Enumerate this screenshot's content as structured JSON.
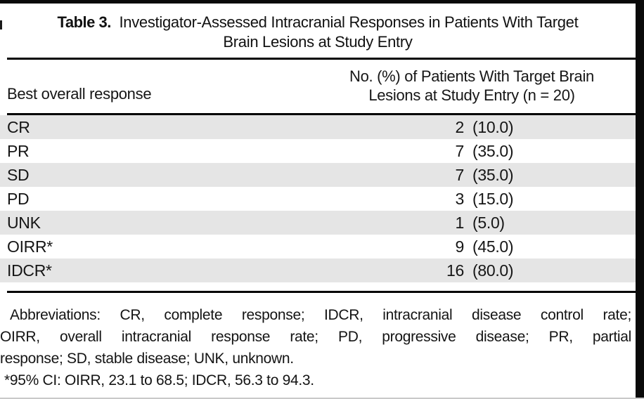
{
  "table": {
    "caption": {
      "label": "Table 3.",
      "title_line1": "Investigator-Assessed Intracranial Responses in Patients With Target",
      "title_line2": "Brain Lesions at Study Entry"
    },
    "header": {
      "col1": "Best overall response",
      "col2_line1": "No. (%) of Patients With Target Brain",
      "col2_line2": "Lesions at Study Entry (n = 20)"
    },
    "rows": [
      {
        "label": "CR",
        "count": "2",
        "pct": "(10.0)"
      },
      {
        "label": "PR",
        "count": "7",
        "pct": "(35.0)"
      },
      {
        "label": "SD",
        "count": "7",
        "pct": "(35.0)"
      },
      {
        "label": "PD",
        "count": "3",
        "pct": "(15.0)"
      },
      {
        "label": "UNK",
        "count": "1",
        "pct": "(5.0)"
      },
      {
        "label": "OIRR*",
        "count": "9",
        "pct": "(45.0)"
      },
      {
        "label": "IDCR*",
        "count": "16",
        "pct": "(80.0)"
      }
    ]
  },
  "footnotes": {
    "abbreviations_line1": "Abbreviations: CR, complete response; IDCR, intracranial disease control rate;",
    "abbreviations_line2": "OIRR, overall intracranial response rate; PD, progressive disease; PR, partial",
    "abbreviations_line3": "response; SD, stable disease; UNK, unknown.",
    "ci_note": "*95% CI: OIRR, 23.1 to 68.5; IDCR, 56.3 to 94.3."
  },
  "colors": {
    "row_shade": "#e5e5e5",
    "rule": "#000000",
    "frame_bar": "#0a0a0a"
  }
}
